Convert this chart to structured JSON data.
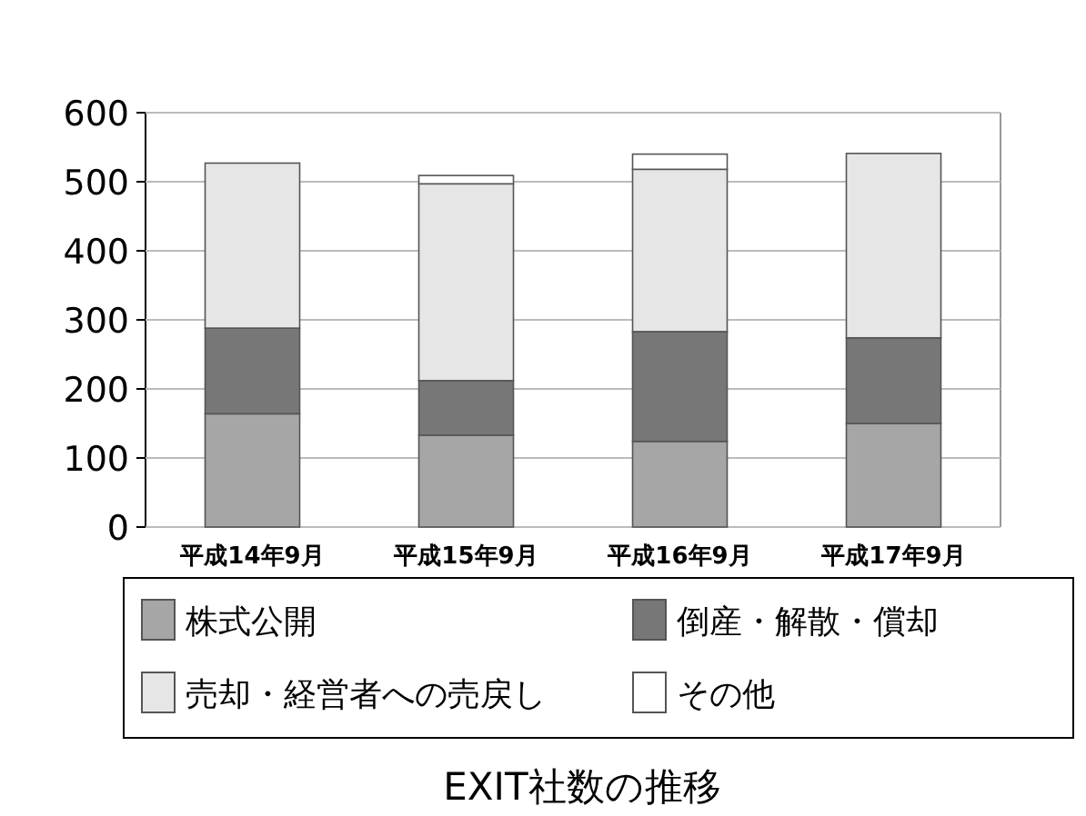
{
  "chart_data": {
    "type": "bar",
    "title": "EXIT社数の推移",
    "stacked": true,
    "categories": [
      "平成14年9月",
      "平成15年9月",
      "平成16年9月",
      "平成17年9月"
    ],
    "series": [
      {
        "name": "株式公開",
        "color": "#a6a6a6",
        "values": [
          164,
          133,
          124,
          150
        ]
      },
      {
        "name": "倒産・解散・償却",
        "color": "#777777",
        "values": [
          124,
          79,
          159,
          124
        ]
      },
      {
        "name": "売却・経営者への売戻し",
        "color": "#e6e6e6",
        "values": [
          239,
          285,
          235,
          267
        ]
      },
      {
        "name": "その他",
        "color": "#ffffff",
        "values": [
          0,
          12,
          22,
          0
        ]
      }
    ],
    "ylim": [
      0,
      600
    ],
    "yticks": [
      0,
      100,
      200,
      300,
      400,
      500,
      600
    ],
    "grid": "y",
    "legend": "bottom"
  }
}
